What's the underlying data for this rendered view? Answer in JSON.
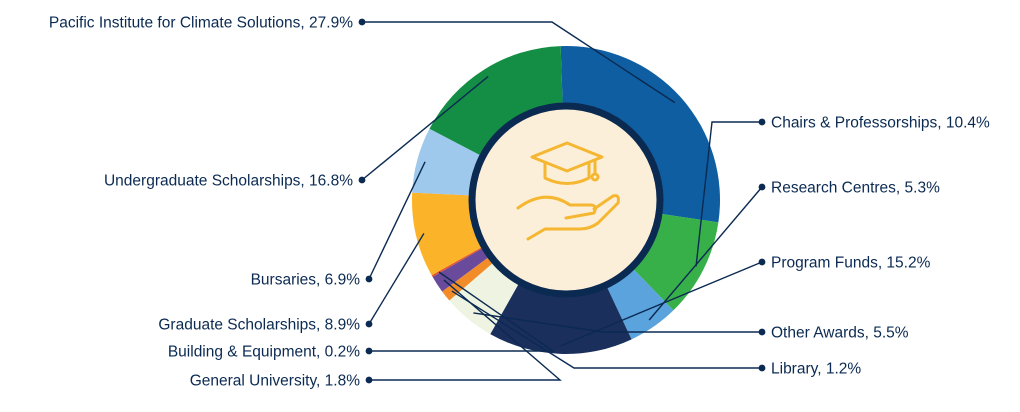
{
  "chart_data": {
    "type": "pie",
    "title": "",
    "slices": [
      {
        "label": "Pacific Institute for Climate Solutions, 27.9%",
        "value": 27.9,
        "color": "#0f5ea1"
      },
      {
        "label": "Chairs & Professorships, 10.4%",
        "value": 10.4,
        "color": "#38b04a"
      },
      {
        "label": "Research Centres, 5.3%",
        "value": 5.3,
        "color": "#5aa3dc"
      },
      {
        "label": "Program Funds, 15.2%",
        "value": 15.2,
        "color": "#1b2f5c"
      },
      {
        "label": "Other Awards, 5.5%",
        "value": 5.5,
        "color": "#eef4e1"
      },
      {
        "label": "Library, 1.2%",
        "value": 1.2,
        "color": "#f28c28"
      },
      {
        "label": "General University, 1.8%",
        "value": 1.8,
        "color": "#6a4a9a"
      },
      {
        "label": "Building & Equipment, 0.2%",
        "value": 0.2,
        "color": "#e4572e"
      },
      {
        "label": "Graduate Scholarships, 8.9%",
        "value": 8.9,
        "color": "#fbb42a"
      },
      {
        "label": "Bursaries, 6.9%",
        "value": 6.9,
        "color": "#9ec8ec"
      },
      {
        "label": "Undergraduate Scholarships, 16.8%",
        "value": 16.8,
        "color": "#138e44"
      }
    ]
  },
  "center_icon": "graduation-cap-in-hand-icon",
  "colors": {
    "ring_border": "#0b2a52",
    "center_fill": "#fcefd9",
    "icon": "#f5b731",
    "text": "#0b2a52"
  }
}
